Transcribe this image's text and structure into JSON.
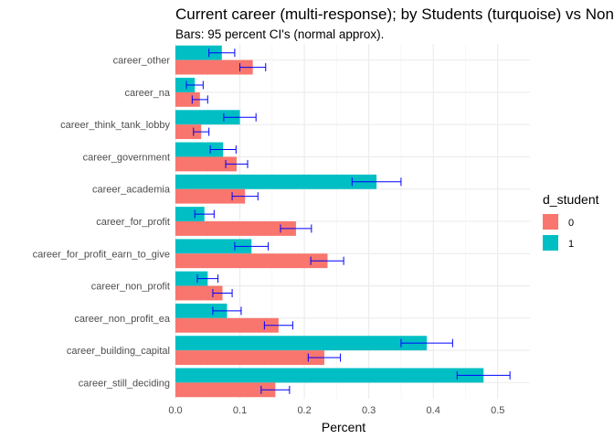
{
  "chart_data": {
    "type": "bar",
    "orientation": "horizontal",
    "title": "Current career (multi-response); by Students (turquoise) vs Non-Students",
    "subtitle": "Bars: 95 percent CI's (normal approx).",
    "xlabel": "Percent",
    "ylabel": "",
    "xlim": [
      0,
      0.55
    ],
    "xticks": [
      "0.0",
      "0.1",
      "0.2",
      "0.3",
      "0.4",
      "0.5"
    ],
    "grid": true,
    "legend_position": "right",
    "legend_title": "d_student",
    "categories": [
      "career_other",
      "career_na",
      "career_think_tank_lobby",
      "career_government",
      "career_academia",
      "career_for_profit",
      "career_for_profit_earn_to_give",
      "career_non_profit",
      "career_non_profit_ea",
      "career_building_capital",
      "career_still_deciding"
    ],
    "series": [
      {
        "name": "0",
        "color": "#F8766D",
        "values": [
          0.12,
          0.038,
          0.04,
          0.095,
          0.108,
          0.187,
          0.236,
          0.073,
          0.16,
          0.231,
          0.155
        ],
        "ci_low": [
          0.1,
          0.026,
          0.028,
          0.078,
          0.088,
          0.163,
          0.21,
          0.058,
          0.138,
          0.206,
          0.133
        ],
        "ci_high": [
          0.14,
          0.05,
          0.052,
          0.112,
          0.128,
          0.211,
          0.261,
          0.088,
          0.182,
          0.256,
          0.177
        ]
      },
      {
        "name": "1",
        "color": "#00BFC4",
        "values": [
          0.072,
          0.03,
          0.1,
          0.074,
          0.312,
          0.045,
          0.118,
          0.05,
          0.08,
          0.39,
          0.478
        ],
        "ci_low": [
          0.052,
          0.017,
          0.075,
          0.054,
          0.274,
          0.03,
          0.092,
          0.034,
          0.058,
          0.35,
          0.437
        ],
        "ci_high": [
          0.092,
          0.043,
          0.125,
          0.094,
          0.35,
          0.06,
          0.144,
          0.066,
          0.102,
          0.43,
          0.519
        ]
      }
    ],
    "error_bar_color": "#0000FF"
  }
}
